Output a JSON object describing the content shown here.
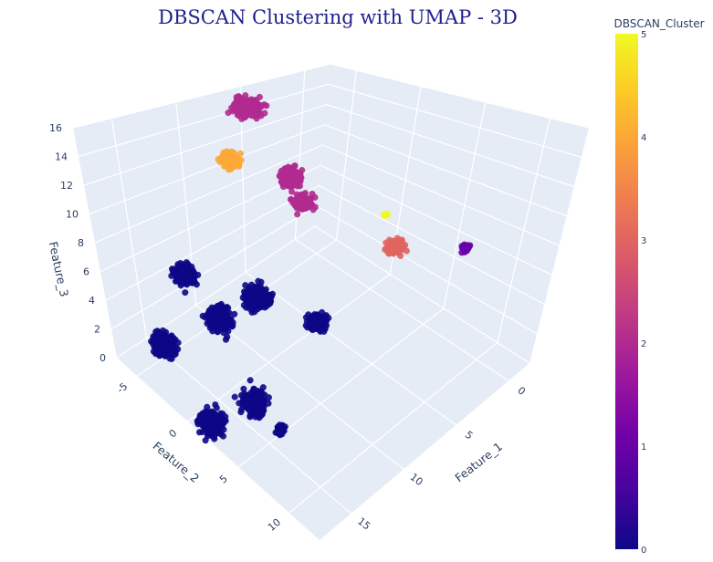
{
  "chart_data": {
    "type": "scatter",
    "title": "DBSCAN Clustering with UMAP - 3D",
    "axes": {
      "x": {
        "label": "Feature_1",
        "ticks": [
          "0",
          "5",
          "10",
          "15"
        ],
        "range": [
          -2,
          18
        ]
      },
      "y": {
        "label": "Feature_2",
        "ticks": [
          "-5",
          "0",
          "5",
          "10"
        ],
        "range": [
          -7,
          13
        ]
      },
      "z": {
        "label": "Feature_3",
        "ticks": [
          "0",
          "2",
          "4",
          "6",
          "8",
          "10",
          "12",
          "14",
          "16"
        ],
        "range": [
          0,
          16
        ]
      }
    },
    "colorbar": {
      "title": "DBSCAN_Cluster",
      "ticks": [
        "0",
        "1",
        "2",
        "3",
        "4",
        "5"
      ],
      "range": [
        0,
        5
      ],
      "colorscale": [
        "#0d0887",
        "#46039f",
        "#7201a8",
        "#9c179e",
        "#bd3786",
        "#d8576b",
        "#ed7953",
        "#fb9f3a",
        "#fdca26",
        "#f0f921"
      ]
    },
    "clusters": [
      {
        "label": 0,
        "color": "#0d0887",
        "note": "many dense sub-groups in the low region"
      },
      {
        "label": 1,
        "color": "#6a00a8"
      },
      {
        "label": 2,
        "color": "#b12a90"
      },
      {
        "label": 3,
        "color": "#e16462"
      },
      {
        "label": 4,
        "color": "#fca636"
      },
      {
        "label": 5,
        "color": "#f0f921"
      }
    ],
    "groups": [
      {
        "cluster": 2,
        "x": 4.5,
        "y": -7.0,
        "z": 14.0,
        "spread": 0.6,
        "n": 260
      },
      {
        "cluster": 2,
        "x": 5.5,
        "y": -2.5,
        "z": 11.0,
        "spread": 0.5,
        "n": 170
      },
      {
        "cluster": 2,
        "x": 6.0,
        "y": -1.0,
        "z": 10.0,
        "spread": 0.45,
        "n": 150
      },
      {
        "cluster": 4,
        "x": 8.5,
        "y": -4.5,
        "z": 12.5,
        "spread": 0.4,
        "n": 120
      },
      {
        "cluster": 5,
        "x": 3.0,
        "y": 3.0,
        "z": 9.5,
        "spread": 0.1,
        "n": 8
      },
      {
        "cluster": 3,
        "x": 3.5,
        "y": 4.5,
        "z": 8.0,
        "spread": 0.4,
        "n": 120
      },
      {
        "cluster": 1,
        "x": -1.0,
        "y": 6.5,
        "z": 6.0,
        "spread": 0.2,
        "n": 30
      },
      {
        "cluster": 0,
        "x": 13.5,
        "y": -4.0,
        "z": 6.0,
        "spread": 0.5,
        "n": 200
      },
      {
        "cluster": 0,
        "x": 12.5,
        "y": -2.0,
        "z": 3.5,
        "spread": 0.6,
        "n": 230
      },
      {
        "cluster": 0,
        "x": 9.0,
        "y": -2.0,
        "z": 3.3,
        "spread": 0.6,
        "n": 260
      },
      {
        "cluster": 0,
        "x": 7.5,
        "y": 2.0,
        "z": 3.0,
        "spread": 0.45,
        "n": 120
      },
      {
        "cluster": 0,
        "x": 14.5,
        "y": 3.0,
        "z": 1.5,
        "spread": 0.6,
        "n": 220
      },
      {
        "cluster": 0,
        "x": 16.0,
        "y": -4.0,
        "z": 2.0,
        "spread": 0.6,
        "n": 220
      },
      {
        "cluster": 0,
        "x": 17.5,
        "y": 2.0,
        "z": 1.0,
        "spread": 0.6,
        "n": 230
      },
      {
        "cluster": 0,
        "x": 15.5,
        "y": 6.5,
        "z": 2.5,
        "spread": 0.2,
        "n": 60
      }
    ]
  }
}
